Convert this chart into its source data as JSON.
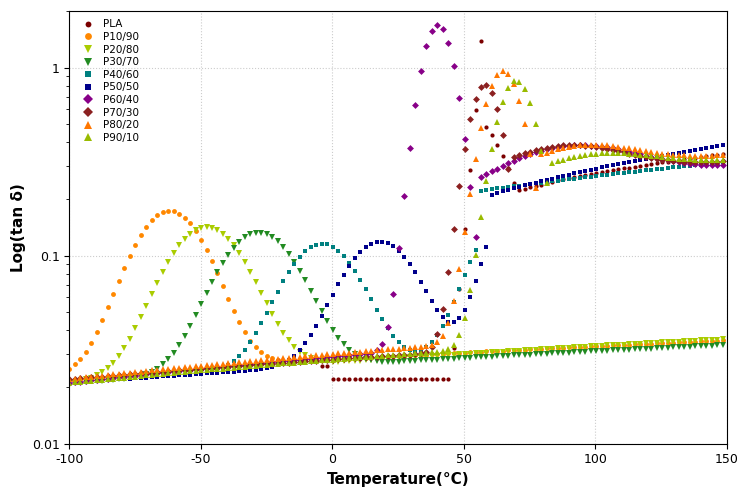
{
  "xlabel": "Temperature(°C)",
  "ylabel": "Log(tan δ)",
  "xlim": [
    -100,
    150
  ],
  "ylim_log": [
    0.01,
    2.0
  ],
  "series": [
    {
      "label": "PLA",
      "color": "#7B0000",
      "marker": "o",
      "ms": 3.0
    },
    {
      "label": "P10/90",
      "color": "#FF8800",
      "marker": "o",
      "ms": 3.5
    },
    {
      "label": "P20/80",
      "color": "#AACC00",
      "marker": "v",
      "ms": 4.0
    },
    {
      "label": "P30/70",
      "color": "#228B22",
      "marker": "v",
      "ms": 4.0
    },
    {
      "label": "P40/60",
      "color": "#008080",
      "marker": "s",
      "ms": 3.5
    },
    {
      "label": "P50/50",
      "color": "#00008B",
      "marker": "s",
      "ms": 3.5
    },
    {
      "label": "P60/40",
      "color": "#880088",
      "marker": "D",
      "ms": 3.5
    },
    {
      "label": "P70/30",
      "color": "#8B2020",
      "marker": "D",
      "ms": 3.5
    },
    {
      "label": "P80/20",
      "color": "#FF7700",
      "marker": "^",
      "ms": 4.0
    },
    {
      "label": "P90/10",
      "color": "#99BB00",
      "marker": "^",
      "ms": 4.0
    }
  ]
}
